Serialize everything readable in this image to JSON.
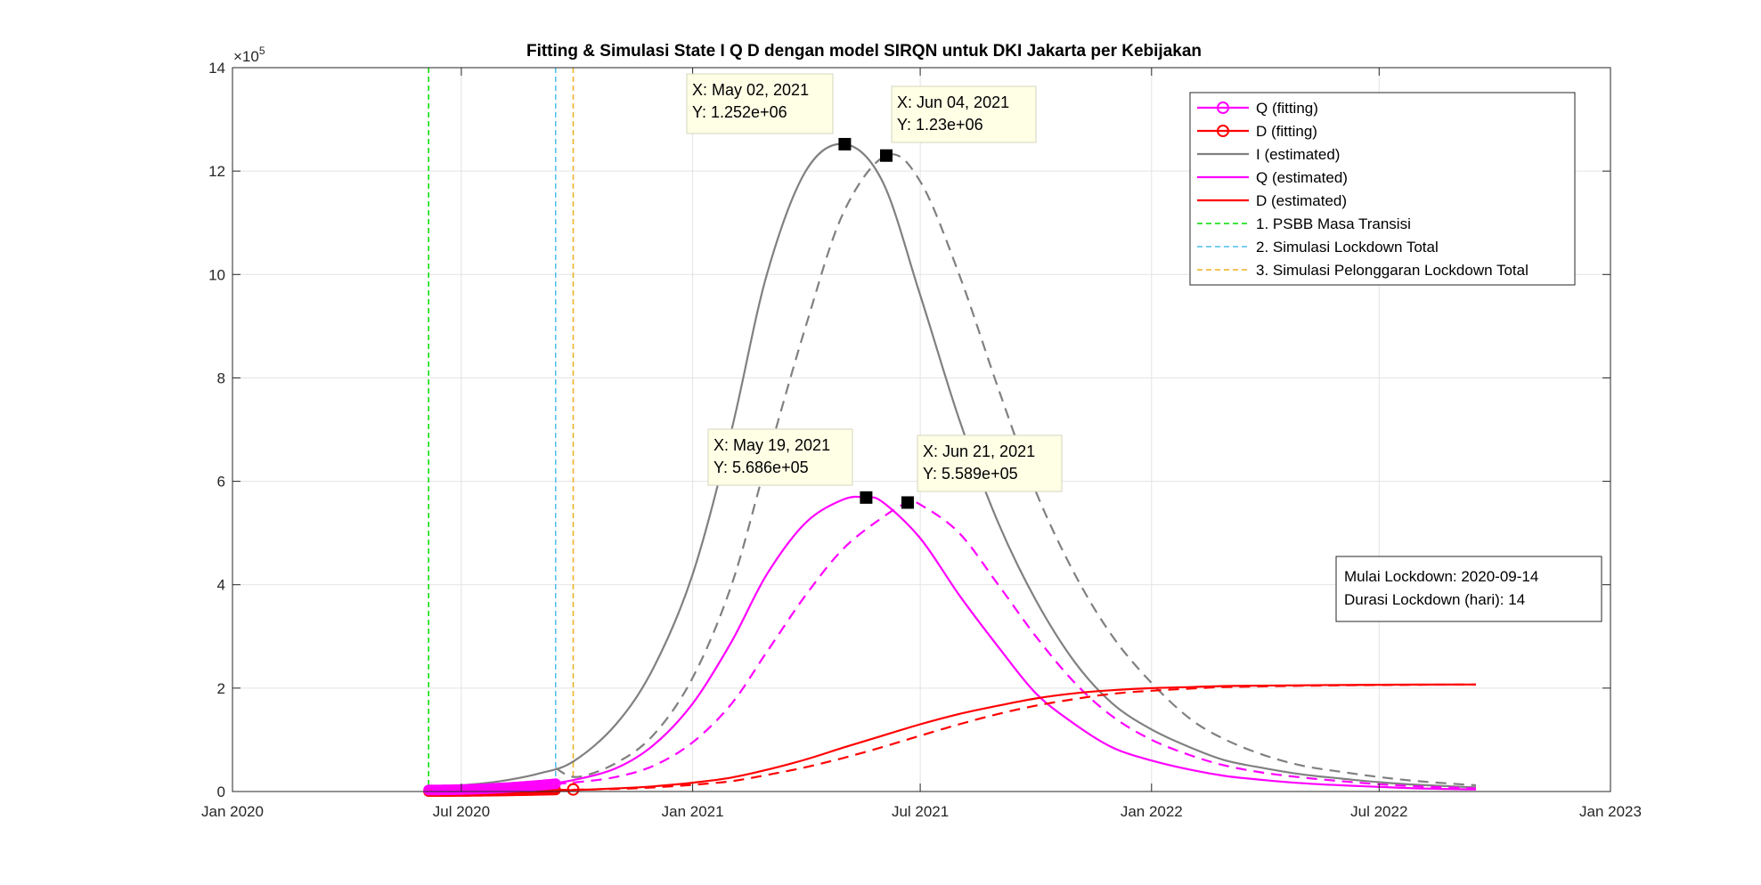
{
  "chart_data": {
    "type": "line",
    "title": "Fitting & Simulasi State  I Q D dengan model SIRQN untuk DKI Jakarta per Kebijakan",
    "xlabel": "",
    "ylabel": "",
    "xlim": [
      "2020-01-01",
      "2023-01-01"
    ],
    "ylim": [
      0,
      1400000
    ],
    "y_exponent_label": "×10",
    "y_exponent_power": "5",
    "x_ticks": [
      {
        "date": "2020-01-01",
        "label": "Jan 2020"
      },
      {
        "date": "2020-07-01",
        "label": "Jul 2020"
      },
      {
        "date": "2021-01-01",
        "label": "Jan 2021"
      },
      {
        "date": "2021-07-01",
        "label": "Jul 2021"
      },
      {
        "date": "2022-01-01",
        "label": "Jan 2022"
      },
      {
        "date": "2022-07-01",
        "label": "Jul 2022"
      },
      {
        "date": "2023-01-01",
        "label": "Jan 2023"
      }
    ],
    "y_ticks": [
      {
        "value": 0,
        "label": "0"
      },
      {
        "value": 200000,
        "label": "2"
      },
      {
        "value": 400000,
        "label": "4"
      },
      {
        "value": 600000,
        "label": "6"
      },
      {
        "value": 800000,
        "label": "8"
      },
      {
        "value": 1000000,
        "label": "10"
      },
      {
        "value": 1200000,
        "label": "12"
      },
      {
        "value": 1400000,
        "label": "14"
      }
    ],
    "grid": true,
    "legend_position": "top-right",
    "colors": {
      "I": "#808080",
      "Q": "#ff00ff",
      "D": "#ff0000",
      "psbb": "#00dd00",
      "lockdown": "#4dbeee",
      "pelonggaran": "#edb120"
    },
    "legend": [
      {
        "label": "Q (fitting)",
        "color": "#ff00ff",
        "style": "solid",
        "marker": "circle"
      },
      {
        "label": "D (fitting)",
        "color": "#ff0000",
        "style": "solid",
        "marker": "circle"
      },
      {
        "label": "I (estimated)",
        "color": "#808080",
        "style": "solid",
        "marker": ""
      },
      {
        "label": "Q (estimated)",
        "color": "#ff00ff",
        "style": "solid",
        "marker": ""
      },
      {
        "label": "D (estimated)",
        "color": "#ff0000",
        "style": "solid",
        "marker": ""
      },
      {
        "label": "1. PSBB Masa Transisi",
        "color": "#00dd00",
        "style": "dashed",
        "marker": ""
      },
      {
        "label": "2. Simulasi Lockdown Total",
        "color": "#4dbeee",
        "style": "dashed",
        "marker": ""
      },
      {
        "label": "3. Simulasi Pelonggaran Lockdown Total",
        "color": "#edb120",
        "style": "dashed",
        "marker": ""
      }
    ],
    "vlines": [
      {
        "date": "2020-06-05",
        "color": "#00dd00"
      },
      {
        "date": "2020-09-14",
        "color": "#4dbeee"
      },
      {
        "date": "2020-09-28",
        "color": "#edb120"
      }
    ],
    "series": [
      {
        "key": "I",
        "style": "solid",
        "color": "#808080",
        "width": 2.2,
        "x": [
          "2020-06-05",
          "2020-07-01",
          "2020-08-01",
          "2020-09-01",
          "2020-09-28",
          "2020-11-01",
          "2020-12-01",
          "2021-01-01",
          "2021-02-01",
          "2021-03-01",
          "2021-04-01",
          "2021-05-02",
          "2021-06-01",
          "2021-07-01",
          "2021-08-01",
          "2021-09-01",
          "2021-10-01",
          "2021-11-01",
          "2021-12-01",
          "2022-01-01",
          "2022-02-01",
          "2022-03-01",
          "2022-04-01",
          "2022-05-01",
          "2022-06-01",
          "2022-07-01",
          "2022-08-01",
          "2022-09-16"
        ],
        "y": [
          8000,
          12000,
          20000,
          35000,
          58000,
          130000,
          240000,
          420000,
          700000,
          1000000,
          1200000,
          1252000,
          1180000,
          960000,
          720000,
          520000,
          370000,
          250000,
          170000,
          120000,
          85000,
          60000,
          45000,
          33000,
          25000,
          18000,
          13000,
          8000
        ]
      },
      {
        "key": "I",
        "style": "dashed",
        "color": "#808080",
        "width": 2.2,
        "x": [
          "2020-09-14",
          "2020-10-01",
          "2020-11-01",
          "2020-12-01",
          "2021-01-01",
          "2021-02-01",
          "2021-03-01",
          "2021-04-01",
          "2021-05-01",
          "2021-06-04",
          "2021-07-01",
          "2021-08-01",
          "2021-09-01",
          "2021-10-01",
          "2021-11-01",
          "2021-12-01",
          "2022-01-01",
          "2022-02-01",
          "2022-03-01",
          "2022-04-01",
          "2022-05-01",
          "2022-06-01",
          "2022-07-01",
          "2022-08-01",
          "2022-09-16"
        ],
        "y": [
          45000,
          28000,
          55000,
          110000,
          220000,
          400000,
          640000,
          900000,
          1120000,
          1230000,
          1180000,
          1000000,
          780000,
          580000,
          420000,
          300000,
          210000,
          140000,
          100000,
          70000,
          50000,
          38000,
          28000,
          20000,
          12000
        ]
      },
      {
        "key": "Q",
        "style": "solid",
        "color": "#ff00ff",
        "width": 2.2,
        "x": [
          "2020-06-05",
          "2020-07-01",
          "2020-08-01",
          "2020-09-01",
          "2020-09-28",
          "2020-11-01",
          "2020-12-01",
          "2021-01-01",
          "2021-02-01",
          "2021-03-01",
          "2021-04-01",
          "2021-05-01",
          "2021-05-19",
          "2021-06-01",
          "2021-07-01",
          "2021-08-01",
          "2021-09-01",
          "2021-10-01",
          "2021-11-01",
          "2021-12-01",
          "2022-01-01",
          "2022-02-01",
          "2022-03-01",
          "2022-04-01",
          "2022-05-01",
          "2022-06-01",
          "2022-07-01",
          "2022-08-01",
          "2022-09-16"
        ],
        "y": [
          3000,
          6000,
          9000,
          13000,
          22000,
          45000,
          90000,
          170000,
          290000,
          420000,
          520000,
          565000,
          568600,
          560000,
          490000,
          380000,
          280000,
          190000,
          130000,
          85000,
          60000,
          42000,
          30000,
          22000,
          16000,
          12000,
          9000,
          6000,
          4000
        ]
      },
      {
        "key": "Q",
        "style": "dashed",
        "color": "#ff00ff",
        "width": 2.2,
        "x": [
          "2020-09-14",
          "2020-10-01",
          "2020-11-01",
          "2020-12-01",
          "2021-01-01",
          "2021-02-01",
          "2021-03-01",
          "2021-04-01",
          "2021-05-01",
          "2021-06-01",
          "2021-06-21",
          "2021-07-01",
          "2021-08-01",
          "2021-09-01",
          "2021-10-01",
          "2021-11-01",
          "2021-12-01",
          "2022-01-01",
          "2022-02-01",
          "2022-03-01",
          "2022-04-01",
          "2022-05-01",
          "2022-06-01",
          "2022-07-01",
          "2022-08-01",
          "2022-09-16"
        ],
        "y": [
          15000,
          18000,
          28000,
          50000,
          95000,
          170000,
          270000,
          380000,
          470000,
          530000,
          558900,
          555000,
          500000,
          400000,
          300000,
          210000,
          145000,
          100000,
          70000,
          50000,
          36000,
          27000,
          20000,
          14000,
          10000,
          6000
        ]
      },
      {
        "key": "D",
        "style": "solid",
        "color": "#ff0000",
        "width": 2.2,
        "x": [
          "2020-06-05",
          "2020-08-01",
          "2020-09-28",
          "2020-11-01",
          "2020-12-01",
          "2021-01-01",
          "2021-02-01",
          "2021-03-01",
          "2021-04-01",
          "2021-05-01",
          "2021-06-01",
          "2021-07-01",
          "2021-08-01",
          "2021-09-01",
          "2021-10-01",
          "2021-11-01",
          "2021-12-01",
          "2022-01-01",
          "2022-02-01",
          "2022-03-01",
          "2022-05-01",
          "2022-07-01",
          "2022-09-16"
        ],
        "y": [
          0,
          1000,
          3000,
          6000,
          10000,
          17000,
          27000,
          42000,
          62000,
          85000,
          108000,
          130000,
          150000,
          166000,
          180000,
          190000,
          196000,
          200000,
          202000,
          204000,
          205500,
          206500,
          207000
        ]
      },
      {
        "key": "D",
        "style": "dashed",
        "color": "#ff0000",
        "width": 2.2,
        "x": [
          "2020-09-14",
          "2020-11-01",
          "2020-12-01",
          "2021-01-01",
          "2021-02-01",
          "2021-03-01",
          "2021-04-01",
          "2021-05-01",
          "2021-06-01",
          "2021-07-01",
          "2021-08-01",
          "2021-09-01",
          "2021-10-01",
          "2021-11-01",
          "2021-12-01",
          "2022-01-01",
          "2022-02-01",
          "2022-03-01",
          "2022-05-01",
          "2022-07-01",
          "2022-09-16"
        ],
        "y": [
          3000,
          5000,
          8000,
          13000,
          20000,
          32000,
          47000,
          65000,
          86000,
          108000,
          130000,
          150000,
          166000,
          179000,
          189000,
          195000,
          199000,
          202000,
          204500,
          206000,
          207000
        ]
      }
    ],
    "fitting_markers": {
      "Q": {
        "x_start": "2020-06-05",
        "x_end": "2020-09-14",
        "y_start": 3000,
        "y_end": 15000,
        "color": "#ff00ff"
      },
      "D": {
        "x_start": "2020-06-05",
        "x_end": "2020-09-14",
        "y_start": 0,
        "y_end": 3000,
        "color": "#ff0000"
      },
      "extra_circle": {
        "x": "2020-09-28",
        "y": 4000,
        "color": "#ff0000"
      }
    },
    "datatips": [
      {
        "x": "2021-05-02",
        "y": 1252000,
        "line1": "X: May 02, 2021",
        "line2": "Y: 1.252e+06"
      },
      {
        "x": "2021-06-04",
        "y": 1230000,
        "line1": "X: Jun 04, 2021",
        "line2": "Y: 1.23e+06"
      },
      {
        "x": "2021-05-19",
        "y": 568600,
        "line1": "X: May 19, 2021",
        "line2": "Y: 5.686e+05"
      },
      {
        "x": "2021-06-21",
        "y": 558900,
        "line1": "X: Jun 21, 2021",
        "line2": "Y: 5.589e+05"
      }
    ],
    "annotation": {
      "line1": "Mulai Lockdown: 2020-09-14",
      "line2": "Durasi Lockdown (hari): 14"
    }
  }
}
